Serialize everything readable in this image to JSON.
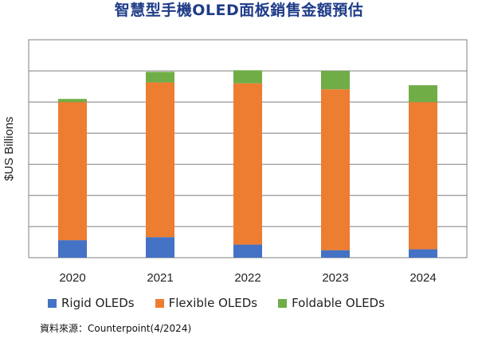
{
  "title": "智慧型手機OLED面板銷售金額預估",
  "source": "資料來源：Counterpoint(4/2024)",
  "chart_data": {
    "type": "bar",
    "stacked": true,
    "categories": [
      "2020",
      "2021",
      "2022",
      "2023",
      "2024"
    ],
    "series": [
      {
        "name": "Rigid OLEDs",
        "color": "#4472C4",
        "values": [
          5.6,
          6.6,
          4.2,
          2.4,
          2.7
        ]
      },
      {
        "name": "Flexible OLEDs",
        "color": "#ED7D31",
        "values": [
          44.4,
          49.7,
          51.8,
          51.7,
          47.3
        ]
      },
      {
        "name": "Foldable OLEDs",
        "color": "#70AD47",
        "values": [
          1.0,
          3.4,
          4.2,
          5.9,
          5.4
        ]
      }
    ],
    "ylabel": "$US Billions",
    "ylim": [
      0,
      70
    ],
    "ytick_step": 10,
    "grid": true,
    "show_y_tick_labels": false,
    "legend": "bottom"
  }
}
